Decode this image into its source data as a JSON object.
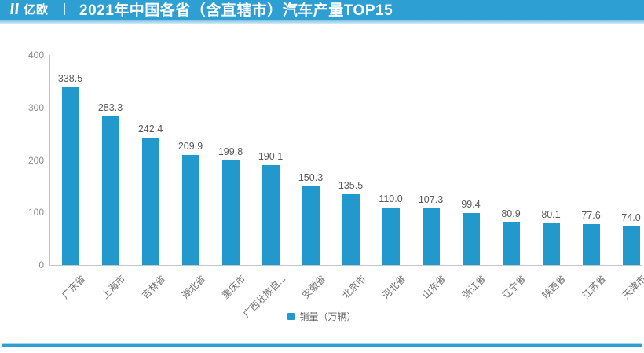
{
  "header": {
    "logo_text": "亿欧",
    "title": "2021年中国各省（含直辖市）汽车产量TOP15",
    "bg_color": "#2d9fd3",
    "text_color": "#ffffff"
  },
  "chart_data": {
    "type": "bar",
    "title": "2021年中国各省（含直辖市）汽车产量TOP15",
    "categories": [
      "广东省",
      "上海市",
      "吉林省",
      "湖北省",
      "重庆市",
      "广西壮族自...",
      "安徽省",
      "北京市",
      "河北省",
      "山东省",
      "浙江省",
      "辽宁省",
      "陕西省",
      "江苏省",
      "天津市"
    ],
    "series": [
      {
        "name": "销量（万辆）",
        "values": [
          338.5,
          283.3,
          242.4,
          209.9,
          199.8,
          190.1,
          150.3,
          135.5,
          110.0,
          107.3,
          99.4,
          80.9,
          80.1,
          77.6,
          74.0
        ],
        "value_labels": [
          "338.5",
          "283.3",
          "242.4",
          "209.9",
          "199.8",
          "190.1",
          "150.3",
          "135.5",
          "110.0",
          "107.3",
          "99.4",
          "80.9",
          "80.1",
          "77.6",
          "74.0"
        ],
        "color": "#2199cc"
      }
    ],
    "xlabel": "",
    "ylabel": "",
    "ylim": [
      0,
      400
    ],
    "yticks": [
      0,
      100,
      200,
      300,
      400
    ],
    "grid": false,
    "legend_position": "bottom",
    "legend": [
      "销量（万辆）"
    ],
    "axis_color": "#c6c6c6",
    "tick_label_color": "#8d8d8d",
    "value_label_color": "#585858"
  },
  "legend": {
    "label": "销量（万辆）",
    "marker_color": "#2199cc"
  },
  "footer": {
    "divider_color": "#2d9fd3"
  }
}
